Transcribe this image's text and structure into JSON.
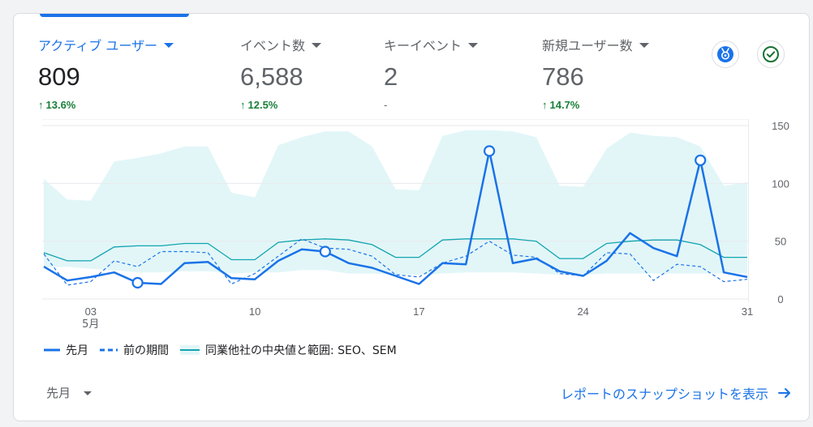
{
  "metrics": [
    {
      "label": "アクティブ ユーザー",
      "value": "809",
      "delta": "13.6%",
      "active": true
    },
    {
      "label": "イベント数",
      "value": "6,588",
      "delta": "12.5%"
    },
    {
      "label": "キーイベント",
      "value": "2",
      "delta": "-"
    },
    {
      "label": "新規ユーザー数",
      "value": "786",
      "delta": "14.7%"
    }
  ],
  "icons": {
    "insights": "insights-badge-icon",
    "status": "check-circle-icon"
  },
  "colors": {
    "accent": "#1a73e8",
    "positive": "#188038",
    "band": "#e2f6f8",
    "median": "#12a4af"
  },
  "chart_data": {
    "type": "line",
    "x": [
      "05-01",
      "05-02",
      "05-03",
      "05-04",
      "05-05",
      "05-06",
      "05-07",
      "05-08",
      "05-09",
      "05-10",
      "05-11",
      "05-12",
      "05-13",
      "05-14",
      "05-15",
      "05-16",
      "05-17",
      "05-18",
      "05-19",
      "05-20",
      "05-21",
      "05-22",
      "05-23",
      "05-24",
      "05-25",
      "05-26",
      "05-27",
      "05-28",
      "05-29",
      "05-30",
      "05-31"
    ],
    "xticks": [
      {
        "x": "05-03",
        "label": "03",
        "sublabel": "5月"
      },
      {
        "x": "05-10",
        "label": "10"
      },
      {
        "x": "05-17",
        "label": "17"
      },
      {
        "x": "05-24",
        "label": "24"
      },
      {
        "x": "05-31",
        "label": "31"
      }
    ],
    "series": [
      {
        "name": "先月",
        "style": "solid",
        "color": "#1a73e8",
        "values": [
          28,
          16,
          19,
          23,
          14,
          13,
          31,
          32,
          18,
          17,
          33,
          43,
          41,
          31,
          27,
          20,
          13,
          31,
          30,
          128,
          31,
          35,
          24,
          20,
          33,
          57,
          44,
          37,
          120,
          23,
          19
        ],
        "anomalies": [
          4,
          12,
          19,
          28
        ]
      },
      {
        "name": "前の期間",
        "style": "dashed",
        "color": "#1a73e8",
        "values": [
          39,
          12,
          15,
          33,
          28,
          41,
          41,
          40,
          13,
          22,
          37,
          52,
          44,
          43,
          37,
          21,
          19,
          31,
          37,
          50,
          38,
          36,
          22,
          20,
          40,
          39,
          16,
          30,
          28,
          15,
          17
        ]
      },
      {
        "name": "同業他社の中央値と範囲: SEO、SEM",
        "style": "band",
        "median": [
          40,
          33,
          33,
          45,
          46,
          46,
          48,
          48,
          34,
          34,
          49,
          51,
          52,
          51,
          47,
          36,
          36,
          51,
          52,
          52,
          52,
          50,
          35,
          35,
          48,
          50,
          51,
          51,
          47,
          36,
          36
        ],
        "upper": [
          104,
          86,
          85,
          119,
          122,
          126,
          132,
          132,
          92,
          88,
          133,
          140,
          145,
          145,
          132,
          95,
          94,
          141,
          146,
          146,
          145,
          140,
          98,
          97,
          130,
          144,
          141,
          140,
          132,
          98,
          101
        ],
        "lower": [
          27,
          28,
          26,
          25,
          23,
          23,
          24,
          24,
          22,
          23,
          23,
          25,
          25,
          22,
          22,
          21,
          21,
          22,
          23,
          23,
          23,
          22,
          21,
          21,
          22,
          22,
          22,
          22,
          22,
          22,
          22
        ]
      }
    ],
    "yticks": [
      0,
      50,
      100,
      150
    ],
    "ylim": [
      0,
      150
    ],
    "grid": true,
    "legend": "bottom-left"
  },
  "footer": {
    "period": "先月",
    "snapshot_link": "レポートのスナップショットを表示"
  }
}
